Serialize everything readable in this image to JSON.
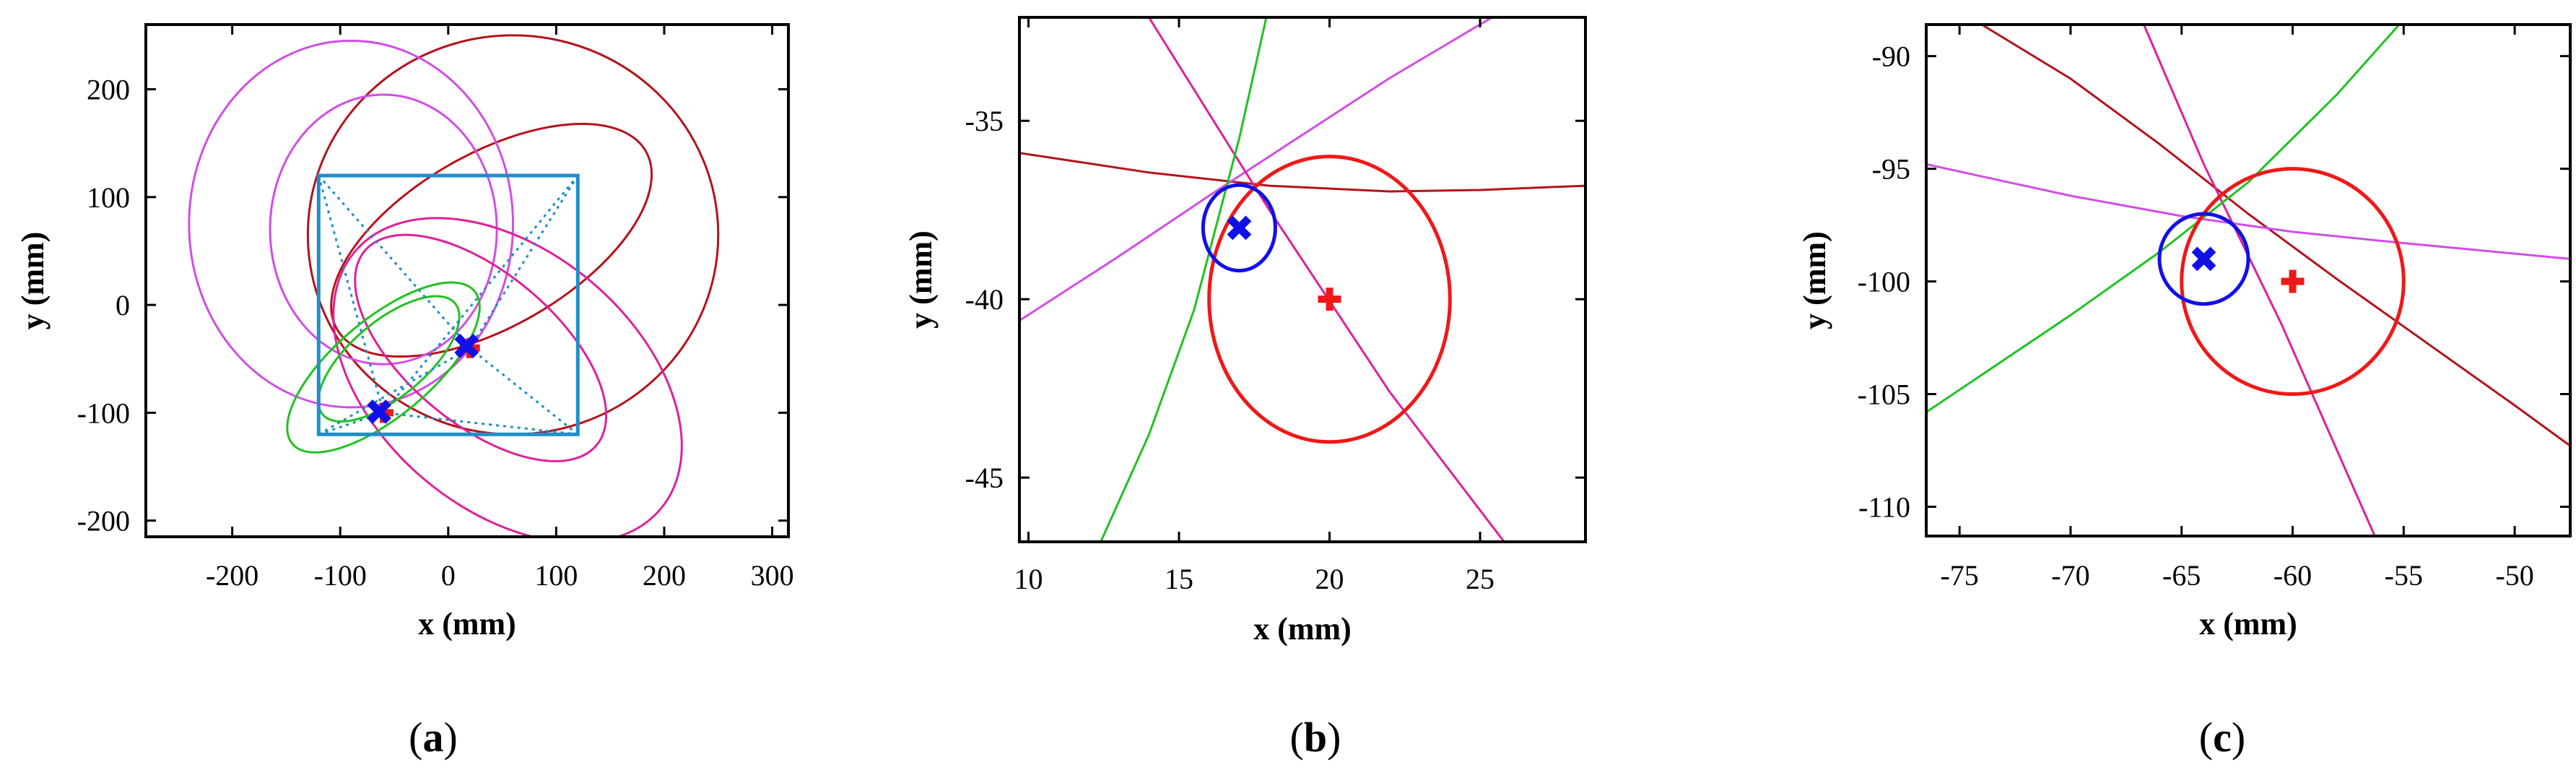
{
  "figure": {
    "captions": [
      {
        "open": "(",
        "letter": "a",
        "close": ")"
      },
      {
        "open": "(",
        "letter": "b",
        "close": ")"
      },
      {
        "open": "(",
        "letter": "c",
        "close": ")"
      }
    ]
  },
  "colors": {
    "darkred": "#b5121b",
    "violet": "#d24de6",
    "magenta": "#e0209a",
    "green": "#1fc31f",
    "blue": "#1010e8",
    "red": "#f01818",
    "steel": "#1f8fc8"
  },
  "chart_data": [
    {
      "type": "scatter",
      "panel": "a",
      "xlabel": "x (mm)",
      "ylabel": "y (mm)",
      "xlim": [
        -280,
        315
      ],
      "ylim": [
        -215,
        260
      ],
      "xticks": [
        -200,
        -100,
        0,
        100,
        200,
        300
      ],
      "yticks": [
        -200,
        -100,
        0,
        100,
        200
      ],
      "square": {
        "corners": [
          [
            -120,
            120
          ],
          [
            120,
            120
          ],
          [
            120,
            -120
          ],
          [
            -120,
            -120
          ]
        ],
        "color": "steel"
      },
      "diagonals_to_target": [
        [
          -120,
          120
        ],
        [
          120,
          120
        ],
        [
          120,
          -120
        ],
        [
          -120,
          -120
        ]
      ],
      "ellipses": [
        {
          "color": "darkred",
          "cx": 60,
          "cy": 65,
          "rx": 190,
          "ry": 185,
          "angle": 0
        },
        {
          "color": "darkred",
          "cx": 40,
          "cy": 60,
          "rx": 165,
          "ry": 80,
          "angle": 30
        },
        {
          "color": "violet",
          "cx": -90,
          "cy": 75,
          "rx": 150,
          "ry": 170,
          "angle": 0
        },
        {
          "color": "violet",
          "cx": -60,
          "cy": 70,
          "rx": 105,
          "ry": 125,
          "angle": 0
        },
        {
          "color": "magenta",
          "cx": 55,
          "cy": -70,
          "rx": 185,
          "ry": 120,
          "angle": -40
        },
        {
          "color": "magenta",
          "cx": 30,
          "cy": -40,
          "rx": 140,
          "ry": 70,
          "angle": -40
        },
        {
          "color": "green",
          "cx": -60,
          "cy": -58,
          "rx": 110,
          "ry": 45,
          "angle": 40
        },
        {
          "color": "green",
          "cx": -55,
          "cy": -50,
          "rx": 80,
          "ry": 35,
          "angle": 40
        }
      ],
      "estimated_points": [
        {
          "x": 17,
          "y": -38
        },
        {
          "x": -64,
          "y": -99
        }
      ],
      "true_points": [
        {
          "x": 20,
          "y": -40
        },
        {
          "x": -60,
          "y": -100
        }
      ]
    },
    {
      "type": "scatter",
      "panel": "b",
      "xlabel": "x (mm)",
      "ylabel": "y (mm)",
      "xlim": [
        9.7,
        28.5
      ],
      "ylim": [
        -46.8,
        -32.1
      ],
      "xticks": [
        10,
        15,
        20,
        25
      ],
      "yticks": [
        -35,
        -40,
        -45
      ],
      "curves": [
        {
          "color": "darkred",
          "x": [
            9.7,
            14,
            18,
            22,
            25,
            28.5
          ],
          "y": [
            -35.9,
            -36.45,
            -36.82,
            -36.98,
            -36.94,
            -36.82
          ]
        },
        {
          "color": "violet",
          "x": [
            9.7,
            13,
            16,
            19,
            22,
            25.4
          ],
          "y": [
            -40.6,
            -38.8,
            -37.1,
            -35.45,
            -33.8,
            -32.1
          ]
        },
        {
          "color": "magenta",
          "x": [
            14,
            18,
            22,
            25.8
          ],
          "y": [
            -32.1,
            -37.5,
            -42.6,
            -46.8
          ]
        },
        {
          "color": "green",
          "x": [
            12.4,
            14,
            15.5,
            17,
            17.9
          ],
          "y": [
            -46.8,
            -43.8,
            -40.3,
            -35.5,
            -32.1
          ]
        }
      ],
      "circles": [
        {
          "color": "red",
          "cx": 20,
          "cy": -40,
          "r": 4
        },
        {
          "color": "blue",
          "cx": 17,
          "cy": -38,
          "r": 1.2
        }
      ],
      "estimated_point": {
        "x": 17,
        "y": -38
      },
      "true_point": {
        "x": 20,
        "y": -40
      }
    },
    {
      "type": "scatter",
      "panel": "c",
      "xlabel": "x (mm)",
      "ylabel": "y (mm)",
      "xlim": [
        -76.5,
        -47.5
      ],
      "ylim": [
        -111.3,
        -88.6
      ],
      "xticks": [
        -75,
        -70,
        -65,
        -60,
        -55,
        -50
      ],
      "yticks": [
        -90,
        -95,
        -100,
        -105,
        -110
      ],
      "curves": [
        {
          "color": "darkred",
          "x": [
            -74,
            -70,
            -66,
            -62,
            -58,
            -54,
            -50,
            -47.5
          ],
          "y": [
            -88.6,
            -91.0,
            -93.9,
            -97.0,
            -99.9,
            -102.7,
            -105.5,
            -107.3
          ]
        },
        {
          "color": "violet",
          "x": [
            -76.5,
            -70,
            -65,
            -60,
            -55,
            -47.5
          ],
          "y": [
            -94.8,
            -96.2,
            -97.1,
            -97.8,
            -98.3,
            -99.0
          ]
        },
        {
          "color": "magenta",
          "x": [
            -66.7,
            -64,
            -60.5,
            -58,
            -56.3
          ],
          "y": [
            -88.6,
            -94.8,
            -101.9,
            -107.5,
            -111.3
          ]
        },
        {
          "color": "green",
          "x": [
            -76.5,
            -70,
            -66,
            -62,
            -58,
            -55.2
          ],
          "y": [
            -105.8,
            -101.5,
            -98.7,
            -95.6,
            -91.7,
            -88.6
          ]
        }
      ],
      "circles": [
        {
          "color": "red",
          "cx": -60,
          "cy": -100,
          "r": 5
        },
        {
          "color": "blue",
          "cx": -64,
          "cy": -99,
          "r": 2
        }
      ],
      "estimated_point": {
        "x": -64,
        "y": -99
      },
      "true_point": {
        "x": -60,
        "y": -100
      }
    }
  ]
}
